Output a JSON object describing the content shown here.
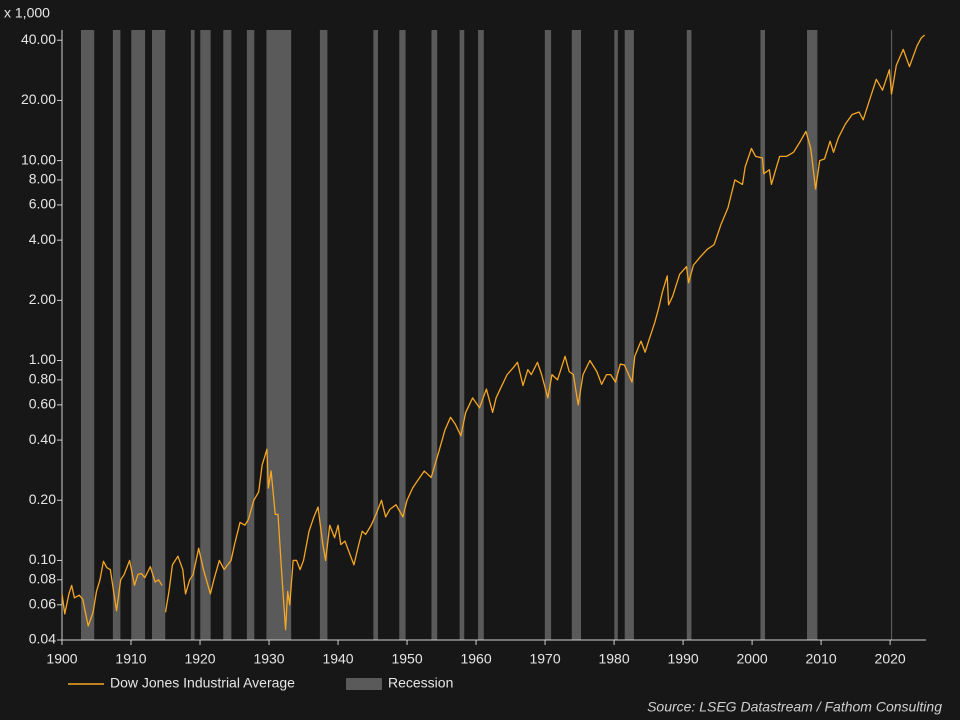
{
  "chart_data": {
    "type": "line",
    "y_unit_label": "x 1,000",
    "log_scale": true,
    "xlim": [
      1900,
      2025.2
    ],
    "ylim": [
      0.04,
      45
    ],
    "xticks": [
      1900,
      1910,
      1920,
      1930,
      1940,
      1950,
      1960,
      1970,
      1980,
      1990,
      2000,
      2010,
      2020
    ],
    "yticks": [
      {
        "value": 40,
        "label": "40.00"
      },
      {
        "value": 20,
        "label": "20.00"
      },
      {
        "value": 10,
        "label": "10.00"
      },
      {
        "value": 8,
        "label": "8.00"
      },
      {
        "value": 6,
        "label": "6.00"
      },
      {
        "value": 4,
        "label": "4.00"
      },
      {
        "value": 2,
        "label": "2.00"
      },
      {
        "value": 1,
        "label": "1.00"
      },
      {
        "value": 0.8,
        "label": "0.80"
      },
      {
        "value": 0.6,
        "label": "0.60"
      },
      {
        "value": 0.4,
        "label": "0.40"
      },
      {
        "value": 0.2,
        "label": "0.20"
      },
      {
        "value": 0.1,
        "label": "0.10"
      },
      {
        "value": 0.08,
        "label": "0.08"
      },
      {
        "value": 0.06,
        "label": "0.06"
      },
      {
        "value": 0.04,
        "label": "0.04"
      }
    ],
    "x": [
      1900.0,
      1900.4,
      1901.0,
      1901.4,
      1901.8,
      1902.5,
      1903.0,
      1903.8,
      1904.5,
      1905.0,
      1905.5,
      1906.0,
      1906.5,
      1907.0,
      1907.9,
      1908.5,
      1909.0,
      1909.8,
      1910.5,
      1911.0,
      1911.5,
      1912.0,
      1912.8,
      1913.5,
      1914.0,
      1914.5,
      1914.8,
      1915.0,
      1915.5,
      1916.0,
      1916.8,
      1917.5,
      1917.9,
      1918.5,
      1919.0,
      1919.8,
      1920.5,
      1921.5,
      1922.0,
      1922.8,
      1923.5,
      1924.0,
      1924.5,
      1925.0,
      1925.8,
      1926.5,
      1927.0,
      1927.8,
      1928.5,
      1929.0,
      1929.7,
      1929.9,
      1930.3,
      1930.9,
      1931.3,
      1931.9,
      1932.4,
      1932.7,
      1933.0,
      1933.5,
      1934.0,
      1934.5,
      1935.0,
      1935.8,
      1936.5,
      1937.1,
      1937.8,
      1938.2,
      1938.8,
      1939.5,
      1940.0,
      1940.4,
      1941.0,
      1942.3,
      1943.0,
      1943.5,
      1944.0,
      1944.8,
      1945.5,
      1946.3,
      1946.9,
      1947.5,
      1948.4,
      1949.4,
      1950.0,
      1950.8,
      1951.5,
      1952.5,
      1953.5,
      1954.5,
      1955.5,
      1956.3,
      1957.0,
      1957.8,
      1958.5,
      1959.5,
      1960.5,
      1961.5,
      1962.4,
      1962.9,
      1963.5,
      1964.5,
      1965.5,
      1966.0,
      1966.8,
      1967.5,
      1968.0,
      1968.9,
      1969.5,
      1970.4,
      1971.0,
      1971.8,
      1972.9,
      1973.5,
      1974.1,
      1974.8,
      1975.5,
      1976.5,
      1977.5,
      1978.2,
      1978.9,
      1979.5,
      1980.2,
      1980.9,
      1981.5,
      1982.6,
      1983.0,
      1983.9,
      1984.5,
      1985.0,
      1985.9,
      1986.5,
      1987.0,
      1987.7,
      1987.9,
      1988.5,
      1989.5,
      1990.5,
      1990.8,
      1991.5,
      1992.5,
      1993.5,
      1994.5,
      1995.5,
      1996.5,
      1997.5,
      1998.6,
      1999.0,
      1999.9,
      2000.5,
      2001.5,
      2001.7,
      2002.5,
      2002.8,
      2003.5,
      2004.0,
      2005.0,
      2006.0,
      2007.0,
      2007.8,
      2008.5,
      2009.2,
      2009.8,
      2010.5,
      2011.3,
      2011.8,
      2012.5,
      2013.5,
      2014.5,
      2015.5,
      2016.1,
      2016.9,
      2018.0,
      2018.9,
      2019.9,
      2020.2,
      2020.9,
      2021.9,
      2022.8,
      2023.9,
      2024.5,
      2025.0
    ],
    "series": [
      {
        "name": "Dow Jones Industrial Average",
        "color": "#f5a623",
        "values": [
          0.068,
          0.054,
          0.068,
          0.075,
          0.065,
          0.067,
          0.064,
          0.047,
          0.055,
          0.07,
          0.08,
          0.099,
          0.092,
          0.09,
          0.056,
          0.08,
          0.085,
          0.1,
          0.075,
          0.085,
          0.086,
          0.082,
          0.093,
          0.078,
          0.08,
          0.075,
          null,
          0.055,
          0.07,
          0.095,
          0.105,
          0.09,
          0.068,
          0.08,
          0.085,
          0.115,
          0.09,
          0.068,
          0.08,
          0.1,
          0.09,
          0.095,
          0.1,
          0.12,
          0.155,
          0.15,
          0.16,
          0.2,
          0.22,
          0.3,
          0.36,
          0.23,
          0.28,
          0.17,
          0.17,
          0.08,
          0.045,
          0.07,
          0.06,
          0.1,
          0.1,
          0.09,
          0.1,
          0.14,
          0.165,
          0.185,
          0.12,
          0.1,
          0.15,
          0.13,
          0.15,
          0.12,
          0.125,
          0.095,
          0.12,
          0.14,
          0.135,
          0.15,
          0.17,
          0.2,
          0.165,
          0.18,
          0.19,
          0.165,
          0.2,
          0.23,
          0.25,
          0.28,
          0.26,
          0.34,
          0.45,
          0.52,
          0.48,
          0.42,
          0.55,
          0.65,
          0.58,
          0.72,
          0.55,
          0.65,
          0.72,
          0.85,
          0.93,
          0.98,
          0.75,
          0.9,
          0.85,
          0.98,
          0.85,
          0.65,
          0.85,
          0.8,
          1.05,
          0.88,
          0.85,
          0.6,
          0.85,
          1.0,
          0.88,
          0.76,
          0.85,
          0.85,
          0.78,
          0.96,
          0.95,
          0.78,
          1.05,
          1.25,
          1.1,
          1.25,
          1.55,
          1.85,
          2.2,
          2.65,
          1.9,
          2.1,
          2.7,
          2.95,
          2.45,
          3.0,
          3.3,
          3.6,
          3.8,
          4.8,
          5.8,
          8.0,
          7.6,
          9.3,
          11.5,
          10.5,
          10.3,
          8.6,
          9.0,
          7.6,
          9.2,
          10.5,
          10.5,
          11.0,
          12.5,
          14.0,
          11.5,
          7.2,
          10.0,
          10.2,
          12.5,
          11.0,
          13.0,
          15.2,
          17.0,
          17.5,
          16.0,
          19.5,
          25.5,
          22.5,
          28.5,
          21.5,
          30.0,
          36.0,
          29.5,
          37.5,
          41.0,
          42.5
        ]
      }
    ],
    "recessions": {
      "name": "Recession",
      "color": "#5a5a5a",
      "periods": [
        [
          1902.75,
          1904.67
        ],
        [
          1907.37,
          1908.46
        ],
        [
          1910.04,
          1912.04
        ],
        [
          1913.04,
          1914.96
        ],
        [
          1918.67,
          1919.21
        ],
        [
          1920.04,
          1921.54
        ],
        [
          1923.37,
          1924.54
        ],
        [
          1926.79,
          1927.87
        ],
        [
          1929.62,
          1933.21
        ],
        [
          1937.37,
          1938.46
        ],
        [
          1945.12,
          1945.79
        ],
        [
          1948.87,
          1949.79
        ],
        [
          1953.54,
          1954.37
        ],
        [
          1957.62,
          1958.29
        ],
        [
          1960.29,
          1961.12
        ],
        [
          1969.96,
          1970.87
        ],
        [
          1973.87,
          1975.21
        ],
        [
          1980.04,
          1980.54
        ],
        [
          1981.54,
          1982.87
        ],
        [
          1990.54,
          1991.21
        ],
        [
          2001.21,
          2001.87
        ],
        [
          2007.96,
          2009.46
        ],
        [
          2020.12,
          2020.29
        ]
      ]
    },
    "source": "Source: LSEG Datastream / Fathom Consulting"
  }
}
